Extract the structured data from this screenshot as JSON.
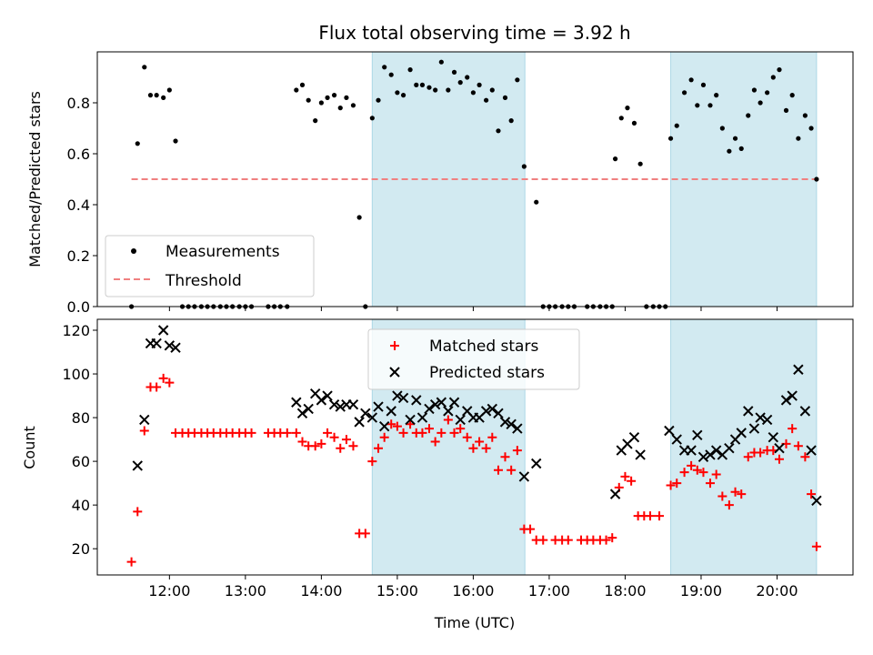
{
  "chart_data": {
    "title": "Flux total observing time = 3.92 h",
    "xlabel": "Time (UTC)",
    "x_ticks": [
      "12:00",
      "13:00",
      "14:00",
      "15:00",
      "16:00",
      "17:00",
      "18:00",
      "19:00",
      "20:00"
    ],
    "x_range_hours": [
      11.05,
      21.0
    ],
    "shaded_intervals_hours": [
      [
        14.67,
        16.68
      ],
      [
        18.6,
        20.52
      ]
    ],
    "shade_color": "#add8e6",
    "panels": [
      {
        "type": "scatter",
        "ylabel": "Matched/Predicted stars",
        "ylim": [
          0,
          1.0
        ],
        "yticks": [
          "0.0",
          "0.2",
          "0.4",
          "0.6",
          "0.8"
        ],
        "ytick_values": [
          0,
          0.2,
          0.4,
          0.6,
          0.8
        ],
        "legend_position": "lower-left",
        "threshold": {
          "name": "Threshold",
          "value": 0.5,
          "x_range_hours": [
            11.5,
            20.52
          ],
          "color": "#f08080"
        },
        "series": [
          {
            "name": "Measurements",
            "marker": "dot",
            "color": "#000000",
            "x": [
              11.5,
              11.58,
              11.67,
              11.75,
              11.83,
              11.92,
              12.0,
              12.08,
              12.17,
              12.25,
              12.33,
              12.42,
              12.5,
              12.58,
              12.67,
              12.75,
              12.83,
              12.92,
              13.0,
              13.08,
              13.3,
              13.38,
              13.46,
              13.55,
              13.67,
              13.75,
              13.83,
              13.92,
              14.0,
              14.08,
              14.17,
              14.25,
              14.33,
              14.42,
              14.5,
              14.58,
              14.67,
              14.75,
              14.83,
              14.92,
              15.0,
              15.08,
              15.17,
              15.25,
              15.33,
              15.42,
              15.5,
              15.58,
              15.67,
              15.75,
              15.83,
              15.92,
              16.0,
              16.08,
              16.17,
              16.25,
              16.33,
              16.42,
              16.5,
              16.58,
              16.67,
              16.83,
              16.92,
              17.0,
              17.08,
              17.17,
              17.25,
              17.33,
              17.5,
              17.58,
              17.67,
              17.75,
              17.83,
              17.87,
              17.95,
              18.03,
              18.12,
              18.2,
              18.28,
              18.37,
              18.45,
              18.53,
              18.6,
              18.68,
              18.78,
              18.87,
              18.95,
              19.03,
              19.12,
              19.2,
              19.28,
              19.37,
              19.45,
              19.53,
              19.62,
              19.7,
              19.78,
              19.87,
              19.95,
              20.03,
              20.12,
              20.2,
              20.28,
              20.37,
              20.45,
              20.52
            ],
            "y": [
              0.0,
              0.64,
              0.94,
              0.83,
              0.83,
              0.82,
              0.85,
              0.65,
              0.0,
              0.0,
              0.0,
              0.0,
              0.0,
              0.0,
              0.0,
              0.0,
              0.0,
              0.0,
              0.0,
              0.0,
              0.0,
              0.0,
              0.0,
              0.0,
              0.85,
              0.87,
              0.81,
              0.73,
              0.8,
              0.82,
              0.83,
              0.78,
              0.82,
              0.79,
              0.35,
              0.0,
              0.74,
              0.81,
              0.94,
              0.91,
              0.84,
              0.83,
              0.93,
              0.87,
              0.87,
              0.86,
              0.85,
              0.96,
              0.85,
              0.92,
              0.88,
              0.9,
              0.84,
              0.87,
              0.81,
              0.85,
              0.69,
              0.82,
              0.73,
              0.89,
              0.55,
              0.41,
              0.0,
              0.0,
              0.0,
              0.0,
              0.0,
              0.0,
              0.0,
              0.0,
              0.0,
              0.0,
              0.0,
              0.58,
              0.74,
              0.78,
              0.72,
              0.56,
              0.0,
              0.0,
              0.0,
              0.0,
              0.66,
              0.71,
              0.84,
              0.89,
              0.79,
              0.87,
              0.79,
              0.83,
              0.7,
              0.61,
              0.66,
              0.62,
              0.75,
              0.85,
              0.8,
              0.84,
              0.9,
              0.93,
              0.77,
              0.83,
              0.66,
              0.75,
              0.7,
              0.5
            ]
          }
        ]
      },
      {
        "type": "scatter",
        "ylabel": "Count",
        "ylim": [
          8,
          125
        ],
        "yticks": [
          "20",
          "40",
          "60",
          "80",
          "100",
          "120"
        ],
        "ytick_values": [
          20,
          40,
          60,
          80,
          100,
          120
        ],
        "legend_position": "upper-center",
        "series": [
          {
            "name": "Matched stars",
            "marker": "plus",
            "color": "#ff0000",
            "x": [
              11.5,
              11.58,
              11.67,
              11.75,
              11.83,
              11.92,
              12.0,
              12.08,
              12.17,
              12.25,
              12.33,
              12.42,
              12.5,
              12.58,
              12.67,
              12.75,
              12.83,
              12.92,
              13.0,
              13.08,
              13.3,
              13.38,
              13.46,
              13.55,
              13.67,
              13.75,
              13.83,
              13.92,
              14.0,
              14.08,
              14.17,
              14.25,
              14.33,
              14.42,
              14.5,
              14.58,
              14.67,
              14.75,
              14.83,
              14.92,
              15.0,
              15.08,
              15.17,
              15.25,
              15.33,
              15.42,
              15.5,
              15.58,
              15.67,
              15.75,
              15.83,
              15.92,
              16.0,
              16.08,
              16.17,
              16.25,
              16.33,
              16.42,
              16.5,
              16.58,
              16.67,
              16.75,
              16.83,
              16.92,
              17.08,
              17.17,
              17.25,
              17.42,
              17.5,
              17.58,
              17.67,
              17.75,
              17.83,
              17.92,
              18.0,
              18.08,
              18.17,
              18.25,
              18.33,
              18.45,
              18.6,
              18.68,
              18.78,
              18.87,
              18.95,
              19.03,
              19.12,
              19.2,
              19.28,
              19.37,
              19.45,
              19.53,
              19.62,
              19.7,
              19.78,
              19.87,
              19.95,
              20.03,
              20.12,
              20.2,
              20.28,
              20.37,
              20.45,
              20.52
            ],
            "y": [
              14,
              37,
              74,
              94,
              94,
              98,
              96,
              73,
              73,
              73,
              73,
              73,
              73,
              73,
              73,
              73,
              73,
              73,
              73,
              73,
              73,
              73,
              73,
              73,
              73,
              69,
              67,
              67,
              68,
              73,
              71,
              66,
              70,
              67,
              27,
              27,
              60,
              66,
              71,
              77,
              76,
              73,
              77,
              73,
              73,
              75,
              69,
              73,
              79,
              73,
              75,
              71,
              66,
              69,
              66,
              71,
              56,
              62,
              56,
              65,
              29,
              29,
              24,
              24,
              24,
              24,
              24,
              24,
              24,
              24,
              24,
              24,
              25,
              48,
              53,
              51,
              35,
              35,
              35,
              35,
              49,
              50,
              55,
              58,
              56,
              55,
              50,
              54,
              44,
              40,
              46,
              45,
              62,
              64,
              64,
              65,
              65,
              61,
              68,
              75,
              67,
              62,
              45,
              21
            ]
          },
          {
            "name": "Predicted stars",
            "marker": "x",
            "color": "#000000",
            "x": [
              11.58,
              11.67,
              11.75,
              11.83,
              11.92,
              12.0,
              12.08,
              13.67,
              13.75,
              13.83,
              13.92,
              14.0,
              14.08,
              14.17,
              14.25,
              14.33,
              14.42,
              14.5,
              14.58,
              14.67,
              14.75,
              14.83,
              14.92,
              15.0,
              15.08,
              15.17,
              15.25,
              15.33,
              15.42,
              15.5,
              15.58,
              15.67,
              15.75,
              15.83,
              15.92,
              16.0,
              16.08,
              16.17,
              16.25,
              16.33,
              16.42,
              16.5,
              16.58,
              16.67,
              16.83,
              17.87,
              17.95,
              18.03,
              18.12,
              18.2,
              18.58,
              18.68,
              18.78,
              18.87,
              18.95,
              19.03,
              19.12,
              19.2,
              19.28,
              19.37,
              19.45,
              19.53,
              19.62,
              19.7,
              19.78,
              19.87,
              19.95,
              20.03,
              20.12,
              20.2,
              20.28,
              20.37,
              20.45,
              20.52
            ],
            "y": [
              58,
              79,
              114,
              114,
              120,
              113,
              112,
              87,
              82,
              84,
              91,
              88,
              90,
              86,
              85,
              86,
              86,
              78,
              82,
              80,
              85,
              76,
              83,
              90,
              89,
              79,
              88,
              80,
              84,
              86,
              87,
              83,
              87,
              79,
              83,
              80,
              80,
              83,
              84,
              82,
              78,
              77,
              75,
              53,
              59,
              45,
              65,
              68,
              71,
              63,
              74,
              70,
              65,
              65,
              72,
              62,
              63,
              65,
              63,
              66,
              70,
              73,
              83,
              75,
              80,
              79,
              71,
              66,
              88,
              90,
              102,
              83,
              65,
              42
            ]
          }
        ]
      }
    ]
  }
}
